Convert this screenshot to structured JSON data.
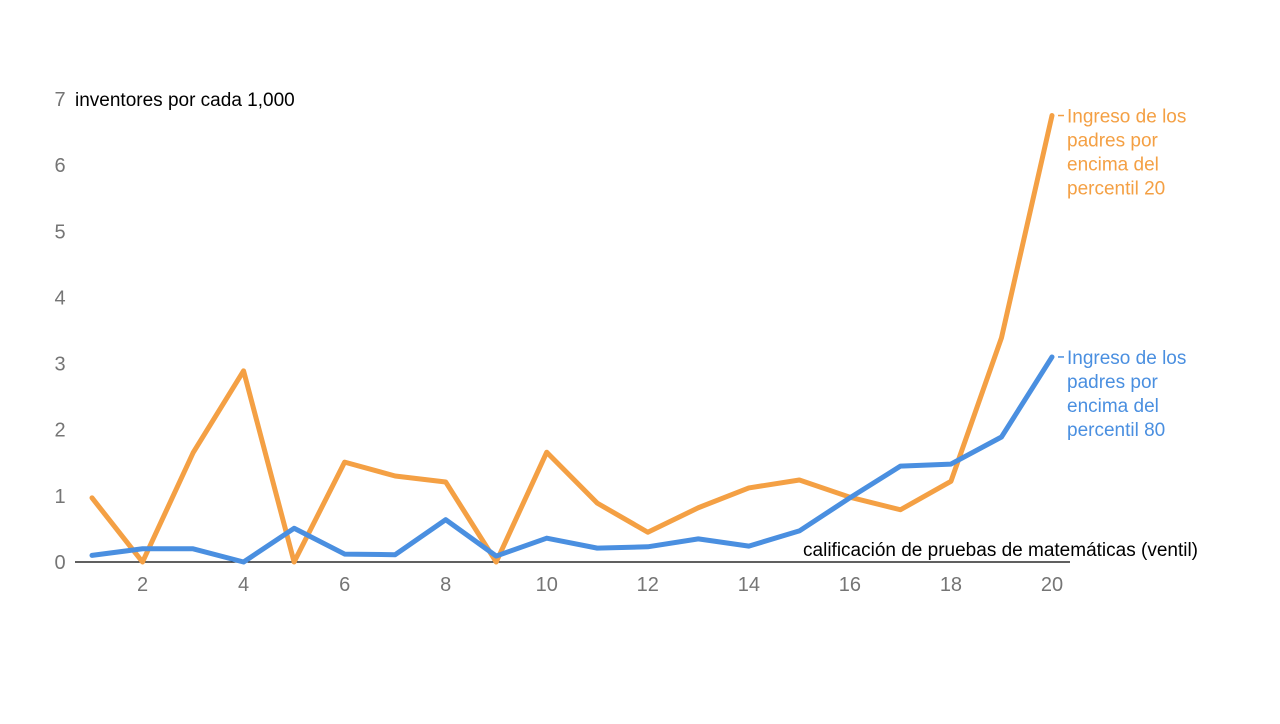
{
  "chart_data": {
    "type": "line",
    "title": "",
    "ylabel": "inventores por cada 1,000",
    "xlabel": "calificación de pruebas de matemáticas (ventil)",
    "xlim": [
      1,
      20
    ],
    "ylim": [
      0,
      7
    ],
    "x": [
      1,
      2,
      3,
      4,
      5,
      6,
      7,
      8,
      9,
      10,
      11,
      12,
      13,
      14,
      15,
      16,
      17,
      18,
      19,
      20
    ],
    "x_ticks": [
      2,
      4,
      6,
      8,
      10,
      12,
      14,
      16,
      18,
      20
    ],
    "y_ticks": [
      0,
      1,
      2,
      3,
      4,
      5,
      6,
      7
    ],
    "grid": false,
    "legend_placement": "right, line-end labels",
    "series": [
      {
        "name": "Ingreso de los padres por encima del percentil 20",
        "label_lines": [
          "Ingreso de los",
          "padres por",
          "encima del",
          "percentil 20"
        ],
        "color": "#F4A044",
        "values": [
          0.97,
          0,
          1.65,
          2.89,
          0,
          1.51,
          1.3,
          1.21,
          0,
          1.66,
          0.89,
          0.45,
          0.82,
          1.12,
          1.24,
          0.98,
          0.79,
          1.22,
          3.39,
          6.75
        ]
      },
      {
        "name": "Ingreso de los padres por encima del percentil 80",
        "label_lines": [
          "Ingreso de los",
          "padres por",
          "encima del",
          "percentil 80"
        ],
        "color": "#4A8FE0",
        "values": [
          0.1,
          0.2,
          0.2,
          0,
          0.51,
          0.12,
          0.11,
          0.64,
          0.09,
          0.36,
          0.21,
          0.23,
          0.35,
          0.24,
          0.47,
          0.97,
          1.45,
          1.48,
          1.89,
          3.1
        ]
      }
    ]
  }
}
